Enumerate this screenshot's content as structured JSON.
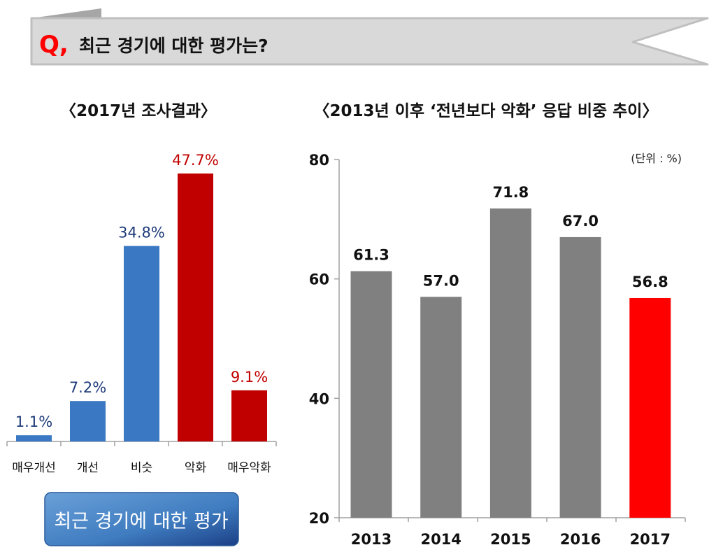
{
  "banner": {
    "q_mark": "Q,",
    "question": "최근 경기에 대한 평가는?"
  },
  "chart_data": [
    {
      "type": "bar",
      "title": "〈2017년 조사결과〉",
      "categories": [
        "매우개선",
        "개선",
        "비슷",
        "악화",
        "매우악화"
      ],
      "values": [
        1.1,
        7.2,
        34.8,
        47.7,
        9.1
      ],
      "value_labels": [
        "1.1%",
        "7.2%",
        "34.8%",
        "47.7%",
        "9.1%"
      ],
      "colors": [
        "#3a78c3",
        "#3a78c3",
        "#3a78c3",
        "#c00000",
        "#c00000"
      ],
      "label_colors": [
        "#1f3c7a",
        "#1f3c7a",
        "#1f3c7a",
        "#c00000",
        "#c00000"
      ],
      "ylim": [
        0,
        50
      ],
      "grid": false,
      "footer_button": "최근 경기에 대한 평가"
    },
    {
      "type": "bar",
      "title": "〈2013년 이후 ‘전년보다 악화’ 응답 비중 추이〉",
      "unit_note": "(단위 : %)",
      "categories": [
        "2013",
        "2014",
        "2015",
        "2016",
        "2017"
      ],
      "values": [
        61.3,
        57.0,
        71.8,
        67.0,
        56.8
      ],
      "value_labels": [
        "61.3",
        "57.0",
        "71.8",
        "67.0",
        "56.8"
      ],
      "colors": [
        "#808080",
        "#808080",
        "#808080",
        "#808080",
        "#ff0000"
      ],
      "ylim": [
        20,
        80
      ],
      "yticks": [
        "20",
        "40",
        "60",
        "80"
      ],
      "grid": false
    }
  ]
}
